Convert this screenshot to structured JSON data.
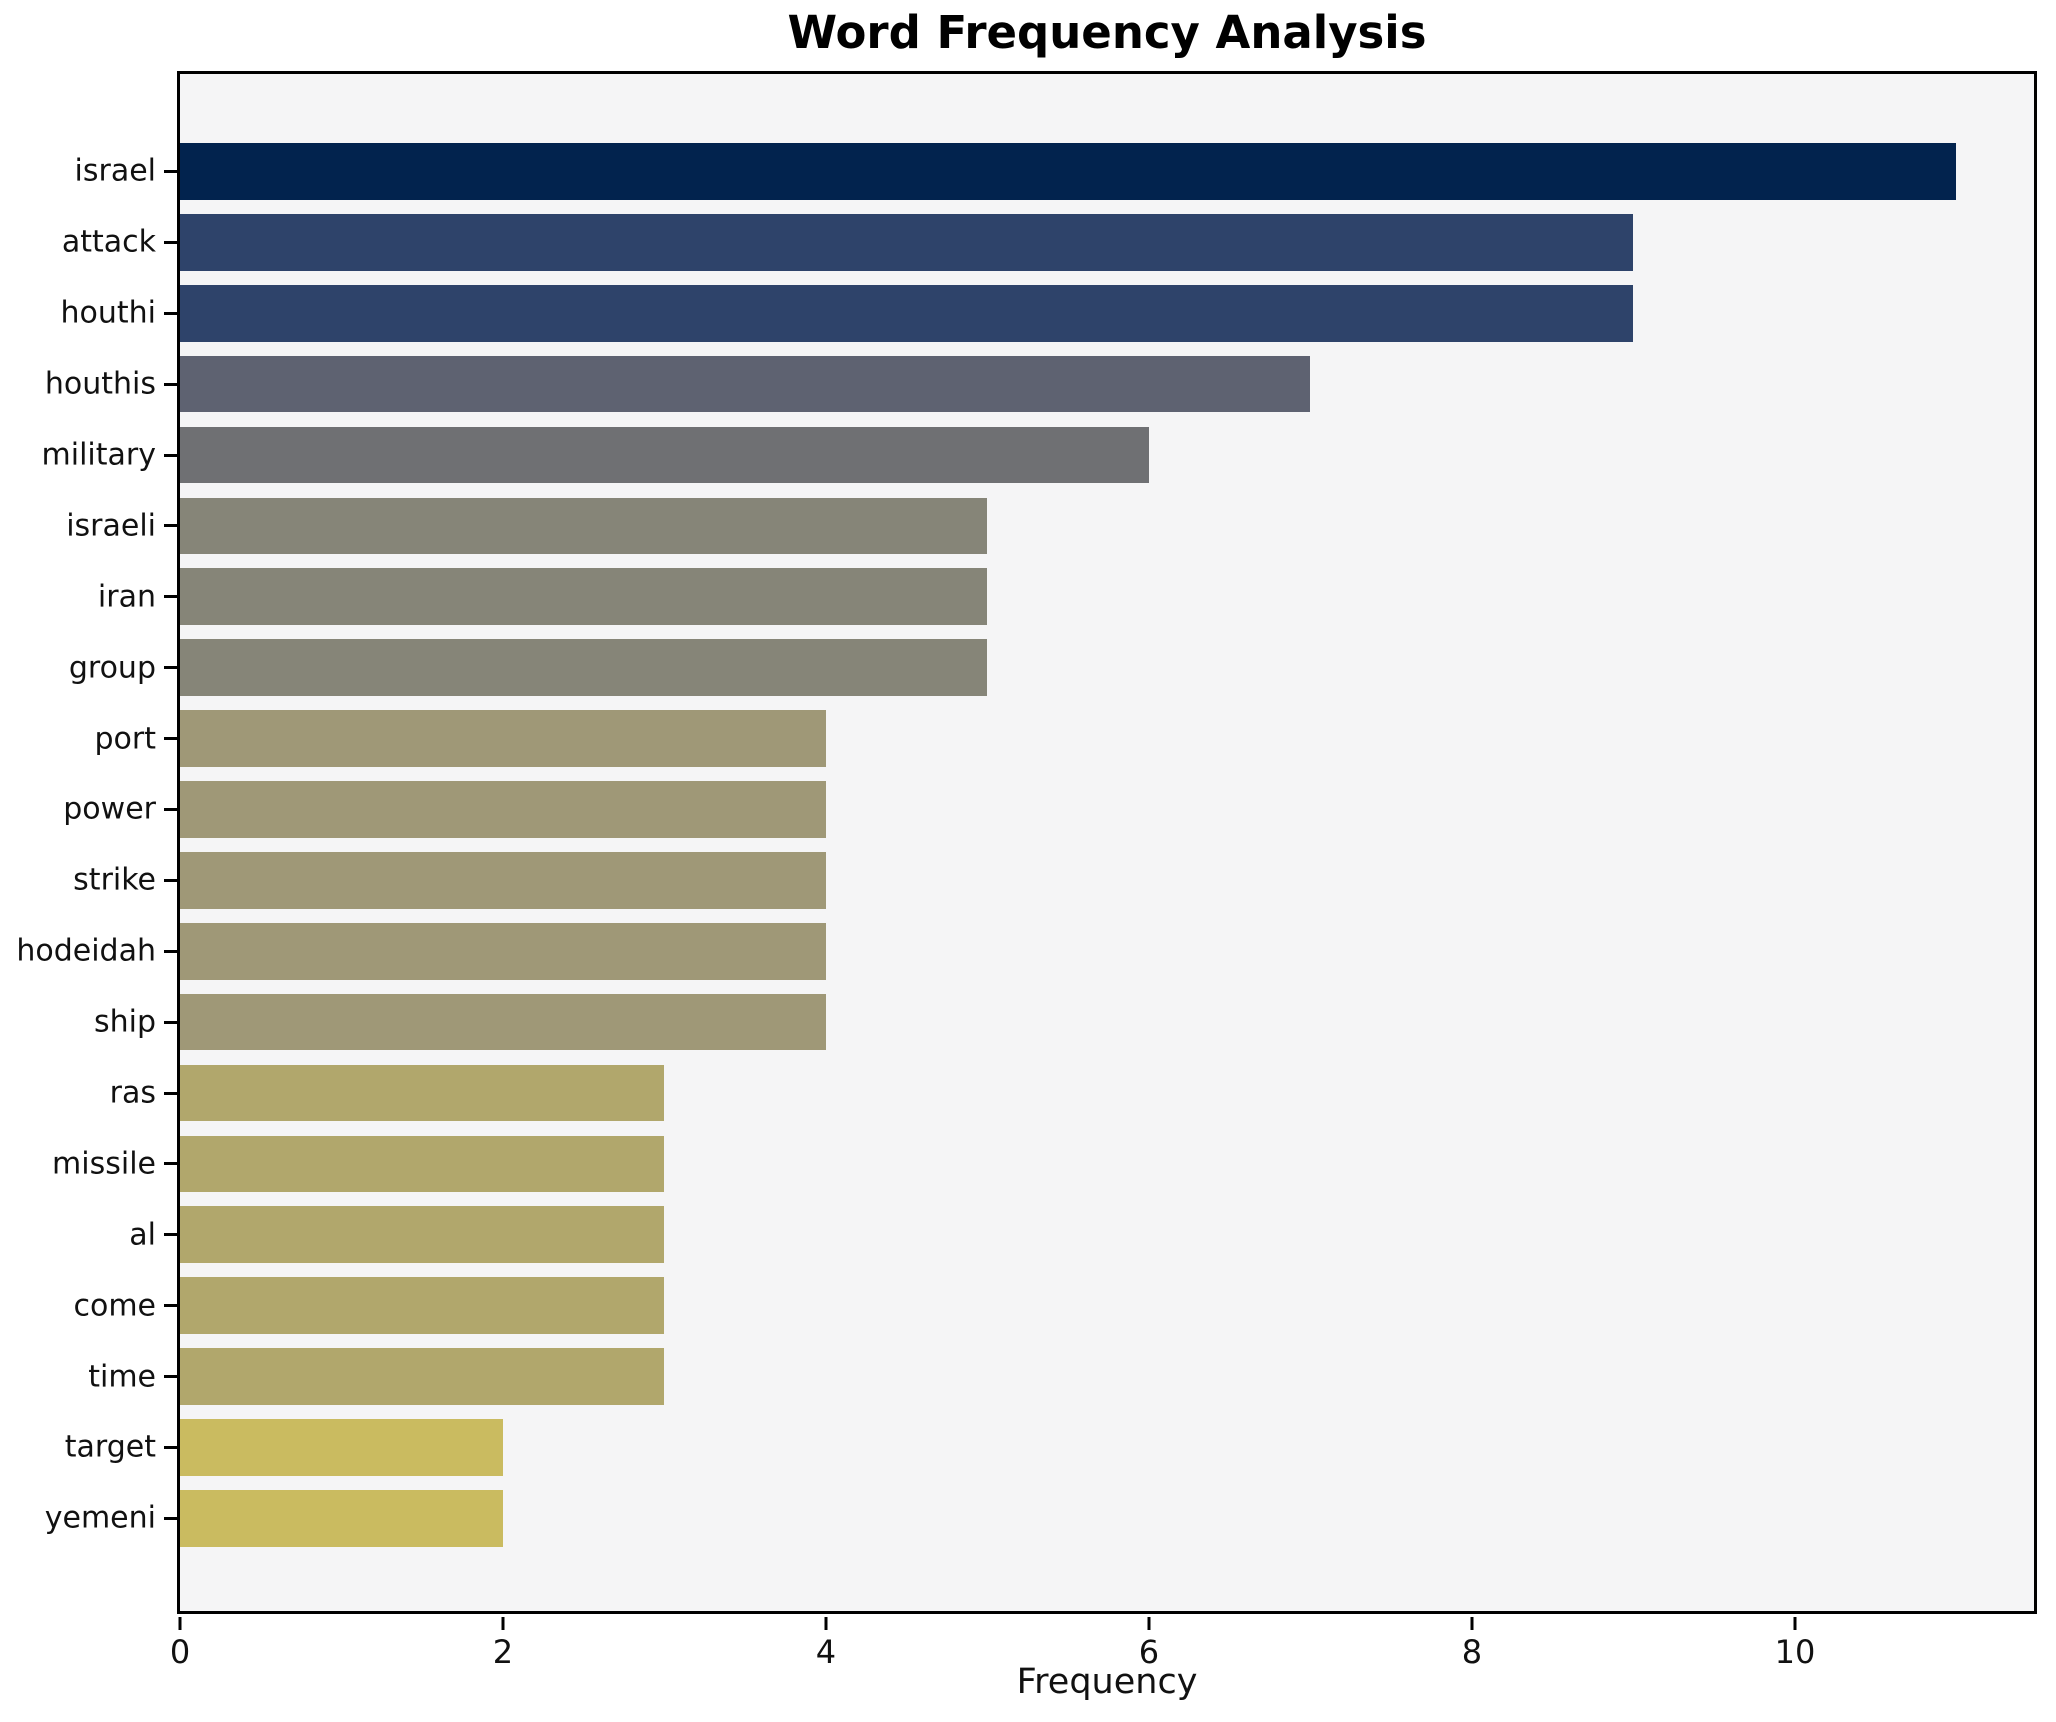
{
  "chart_data": {
    "type": "bar",
    "orientation": "horizontal",
    "title": "Word Frequency Analysis",
    "xlabel": "Frequency",
    "ylabel": "",
    "categories": [
      "israel",
      "attack",
      "houthi",
      "houthis",
      "military",
      "israeli",
      "iran",
      "group",
      "port",
      "power",
      "strike",
      "hodeidah",
      "ship",
      "ras",
      "missile",
      "al",
      "come",
      "time",
      "target",
      "yemeni"
    ],
    "values": [
      11,
      9,
      9,
      7,
      6,
      5,
      5,
      5,
      4,
      4,
      4,
      4,
      4,
      3,
      3,
      3,
      3,
      3,
      2,
      2
    ],
    "bar_colors": [
      "#02234e",
      "#2e436a",
      "#2e436a",
      "#5e6271",
      "#6f7073",
      "#868578",
      "#868578",
      "#868578",
      "#9f9877",
      "#9f9877",
      "#9f9877",
      "#9f9877",
      "#9f9877",
      "#b1a76c",
      "#b1a76c",
      "#b1a76c",
      "#b1a76c",
      "#b1a76c",
      "#cabb60",
      "#cabb60"
    ],
    "x_ticks": [
      0,
      2,
      4,
      6,
      8,
      10
    ],
    "xlim": [
      0,
      11.48
    ],
    "grid": false,
    "legend": null,
    "plot_background": "#f5f5f6",
    "figure_background": "#ffffff",
    "frame_color": "#000000"
  }
}
